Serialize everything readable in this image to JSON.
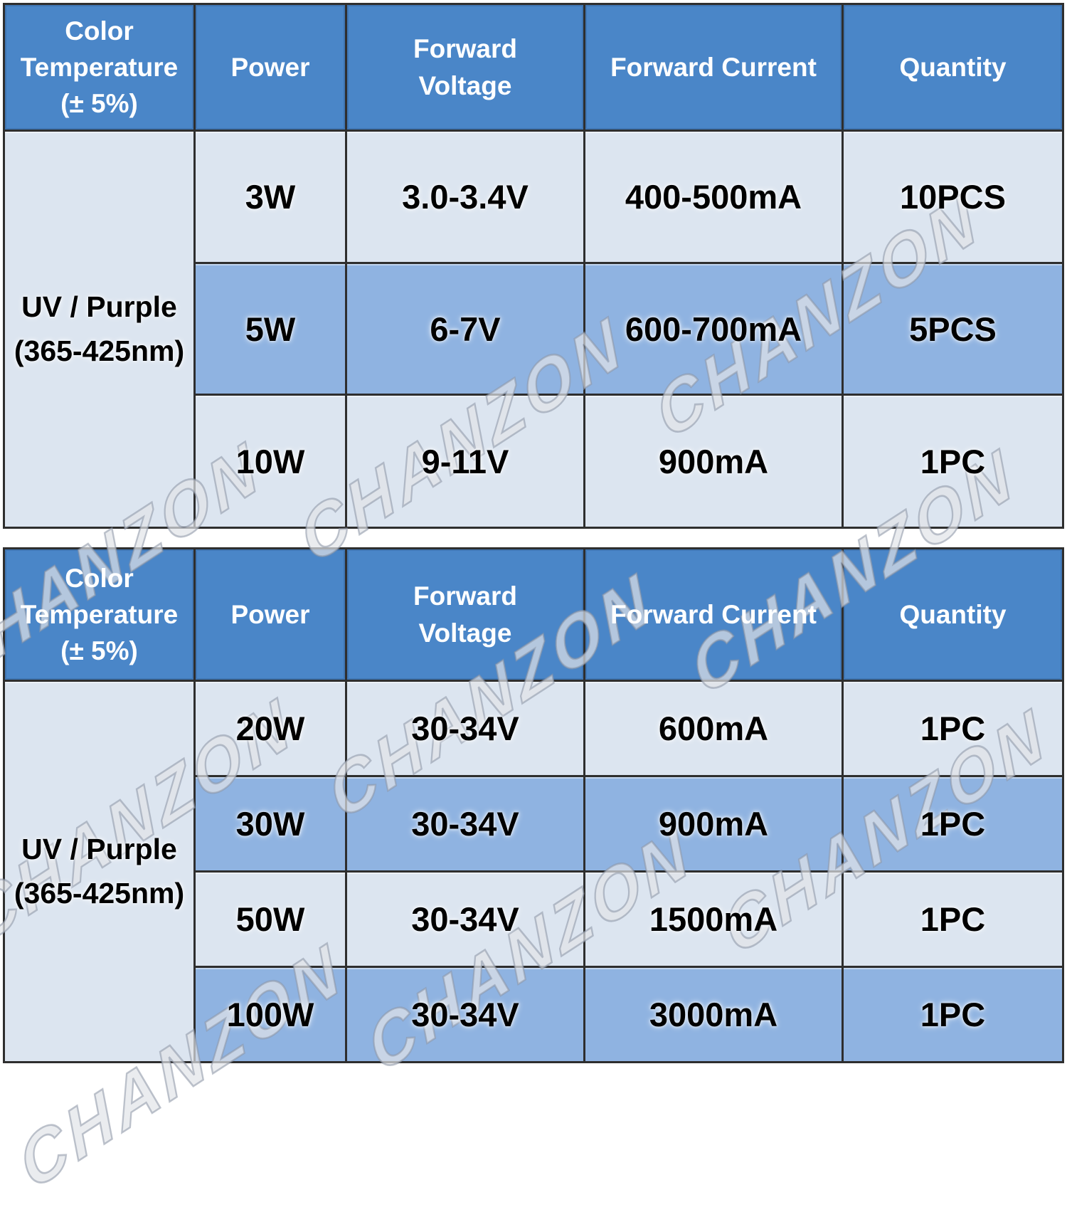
{
  "page": {
    "description": "LED chip specification tables",
    "watermark": {
      "text": "CHANZON"
    }
  },
  "colors": {
    "header_bg": "#4a86c8",
    "header_text": "#ffffff",
    "row_light": "#dce5f0",
    "row_dark": "#8fb3e1",
    "border": "#2e2e2e",
    "data_text": "#000000",
    "background": "#ffffff"
  },
  "columns": [
    {
      "key": "color_temperature",
      "label": "Color\nTemperature\n(± 5%)"
    },
    {
      "key": "power",
      "label": "Power"
    },
    {
      "key": "forward_voltage",
      "label": "Forward\nVoltage"
    },
    {
      "key": "forward_current",
      "label": "Forward Current"
    },
    {
      "key": "quantity",
      "label": "Quantity"
    }
  ],
  "tables": [
    {
      "id": "low-power",
      "group_label": "UV / Purple\n(365-425nm)",
      "rows": [
        {
          "power": "3W",
          "forward_voltage": "3.0-3.4V",
          "forward_current": "400-500mA",
          "quantity": "10PCS"
        },
        {
          "power": "5W",
          "forward_voltage": "6-7V",
          "forward_current": "600-700mA",
          "quantity": "5PCS"
        },
        {
          "power": "10W",
          "forward_voltage": "9-11V",
          "forward_current": "900mA",
          "quantity": "1PC"
        }
      ]
    },
    {
      "id": "high-power",
      "group_label": "UV / Purple\n(365-425nm)",
      "rows": [
        {
          "power": "20W",
          "forward_voltage": "30-34V",
          "forward_current": "600mA",
          "quantity": "1PC"
        },
        {
          "power": "30W",
          "forward_voltage": "30-34V",
          "forward_current": "900mA",
          "quantity": "1PC"
        },
        {
          "power": "50W",
          "forward_voltage": "30-34V",
          "forward_current": "1500mA",
          "quantity": "1PC"
        },
        {
          "power": "100W",
          "forward_voltage": "30-34V",
          "forward_current": "3000mA",
          "quantity": "1PC"
        }
      ]
    }
  ]
}
